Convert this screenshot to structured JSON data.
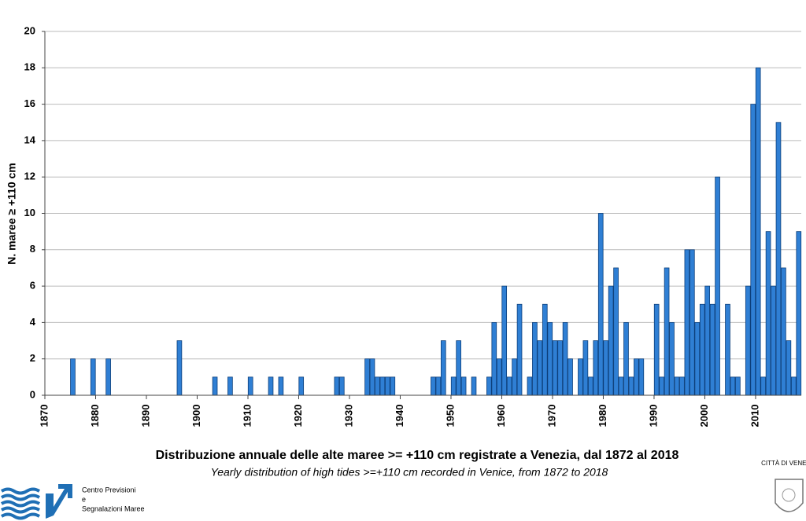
{
  "chart_data": {
    "type": "bar",
    "title": "Distribuzione annuale delle alte maree >= +110 cm registrate a Venezia, dal 1872 al 2018",
    "subtitle": "Yearly distribution of high tides >=+110 cm recorded in Venice, from 1872 to 2018",
    "y_label": "N. maree ≥ +110 cm",
    "color": "#2f7fd4",
    "x": [
      1875,
      1879,
      1882,
      1896,
      1903,
      1906,
      1910,
      1914,
      1916,
      1920,
      1927,
      1928,
      1933,
      1934,
      1935,
      1936,
      1937,
      1938,
      1946,
      1947,
      1948,
      1950,
      1951,
      1952,
      1954,
      1957,
      1958,
      1959,
      1960,
      1961,
      1962,
      1963,
      1965,
      1966,
      1967,
      1968,
      1969,
      1970,
      1971,
      1972,
      1973,
      1975,
      1976,
      1977,
      1978,
      1979,
      1980,
      1981,
      1982,
      1983,
      1984,
      1985,
      1986,
      1987,
      1990,
      1991,
      1992,
      1993,
      1994,
      1995,
      1996,
      1997,
      1998,
      1999,
      2000,
      2001,
      2002,
      2004,
      2005,
      2006,
      2008,
      2009,
      2010,
      2011,
      2012,
      2013,
      2014,
      2015,
      2016,
      2017,
      2018
    ],
    "values": [
      2,
      2,
      2,
      3,
      1,
      1,
      1,
      1,
      1,
      1,
      1,
      1,
      2,
      2,
      1,
      1,
      1,
      1,
      1,
      1,
      3,
      1,
      3,
      1,
      1,
      1,
      4,
      2,
      6,
      1,
      2,
      5,
      1,
      4,
      3,
      5,
      4,
      3,
      3,
      4,
      2,
      2,
      3,
      1,
      3,
      10,
      3,
      6,
      7,
      1,
      4,
      1,
      2,
      2,
      5,
      1,
      7,
      4,
      1,
      1,
      8,
      8,
      4,
      5,
      6,
      5,
      12,
      5,
      1,
      1,
      6,
      16,
      18,
      1,
      9,
      6,
      15,
      7,
      3,
      1,
      9
    ],
    "xlim": [
      1870,
      2019
    ],
    "xticks": [
      1870,
      1880,
      1890,
      1900,
      1910,
      1920,
      1930,
      1940,
      1950,
      1960,
      1970,
      1980,
      1990,
      2000,
      2010
    ],
    "ylim": [
      0,
      20
    ],
    "yticks": [
      0,
      2,
      4,
      6,
      8,
      10,
      12,
      14,
      16,
      18,
      20
    ],
    "grid": true
  },
  "logo": {
    "lines": [
      "Centro Previsioni",
      "e",
      "Segnalazioni Maree"
    ]
  },
  "crest": "CITTÀ DI VENEZIA"
}
